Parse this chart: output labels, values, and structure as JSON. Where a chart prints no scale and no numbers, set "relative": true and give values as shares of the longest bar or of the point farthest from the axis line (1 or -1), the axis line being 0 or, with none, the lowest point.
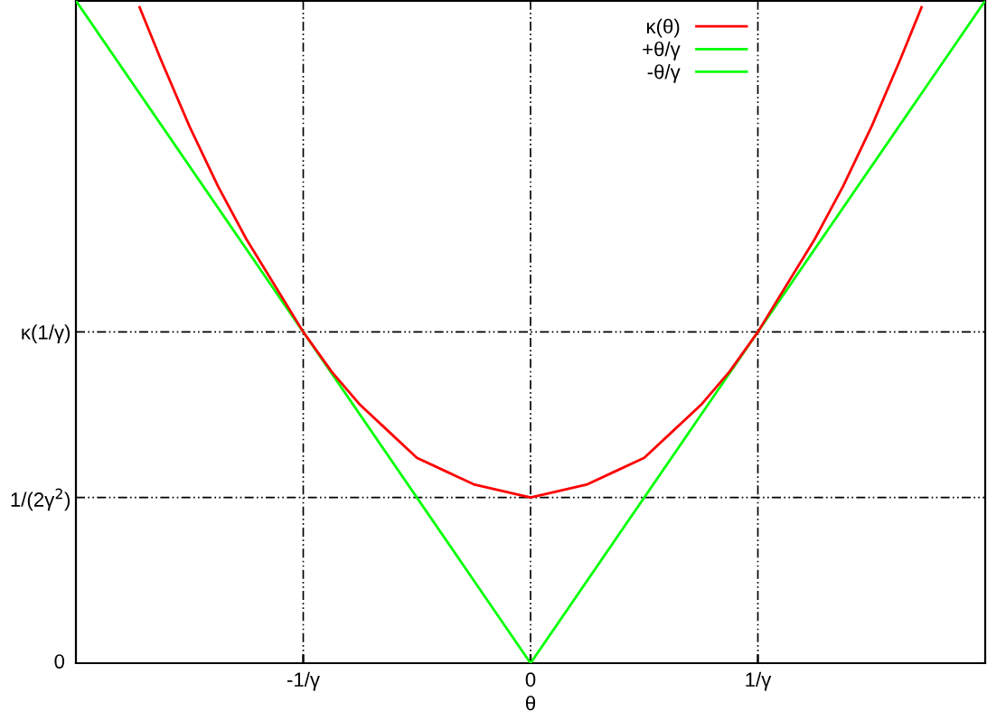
{
  "chart_data": {
    "type": "line",
    "xlabel": "θ",
    "xlim": [
      -2,
      2
    ],
    "relative": true,
    "xticks": [
      {
        "value": -1,
        "label": "-1/γ"
      },
      0,
      {
        "value": 1,
        "label": "1/γ"
      }
    ],
    "annotations": [
      "0"
    ],
    "ref_lines": [
      {
        "axis": "y",
        "value": 0.25,
        "label": "1/(2γ$^{2}$)",
        "color": "#000000",
        "line_style": "dashdot"
      },
      {
        "axis": "y",
        "value": 0.5,
        "label": "κ(1/γ)",
        "color": "#000000",
        "line_style": "dashdot"
      }
    ],
    "grid": "x",
    "legend": "top",
    "marker": "none",
    "series": [
      {
        "name": "κ(θ)",
        "color": "#ff0000",
        "x": [
          -1.72,
          -1.625,
          -1.5,
          -1.375,
          -1.25,
          -1.125,
          -1,
          -0.875,
          -0.75,
          -0.625,
          -0.5,
          -0.375,
          -0.25,
          0,
          0.25,
          0.375,
          0.5,
          0.625,
          0.75,
          0.875,
          1,
          1.125,
          1.25,
          1.375,
          1.5,
          1.625,
          1.72
        ],
        "values": [
          0.99,
          0.91,
          0.81,
          0.72,
          0.64,
          0.57,
          0.5,
          0.44,
          0.39,
          0.35,
          0.31,
          0.29,
          0.27,
          0.25,
          0.27,
          0.29,
          0.31,
          0.35,
          0.39,
          0.44,
          0.5,
          0.57,
          0.64,
          0.72,
          0.81,
          0.91,
          0.99
        ]
      },
      {
        "name": "+θ/γ",
        "color": "#00ff00",
        "x": [
          0,
          2
        ],
        "values": [
          0,
          1
        ]
      },
      {
        "name": "-θ/γ",
        "color": "#00ff00",
        "x": [
          -2,
          0
        ],
        "values": [
          1,
          0
        ]
      }
    ]
  }
}
